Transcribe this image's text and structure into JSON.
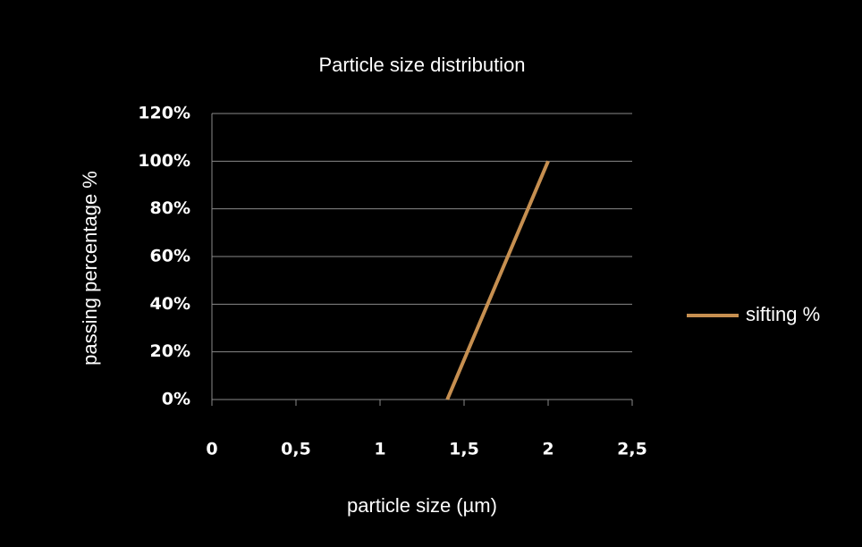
{
  "chart_data": {
    "type": "line",
    "title": "Particle size distribution",
    "x_label": "particle size (µm)",
    "y_label": "passing percentage  %",
    "x": [
      1.4,
      2
    ],
    "series": [
      {
        "name": "sifting %",
        "color": "#c68f50",
        "values": [
          0,
          100
        ]
      }
    ],
    "xlim": [
      0,
      2.5
    ],
    "xticks": [
      0,
      {
        "value": 0.5,
        "label": "0,5"
      },
      1,
      {
        "value": 1.5,
        "label": "1,5"
      },
      2,
      {
        "value": 2.5,
        "label": "2,5"
      }
    ],
    "ylim": [
      0,
      120
    ],
    "yticks": [
      {
        "value": 0,
        "label": "0%"
      },
      {
        "value": 20,
        "label": "20%"
      },
      {
        "value": 40,
        "label": "40%"
      },
      {
        "value": 60,
        "label": "60%"
      },
      {
        "value": 80,
        "label": "80%"
      },
      {
        "value": 100,
        "label": "100%"
      },
      {
        "value": 120,
        "label": "120%"
      }
    ],
    "grid": true,
    "legend": "right"
  }
}
